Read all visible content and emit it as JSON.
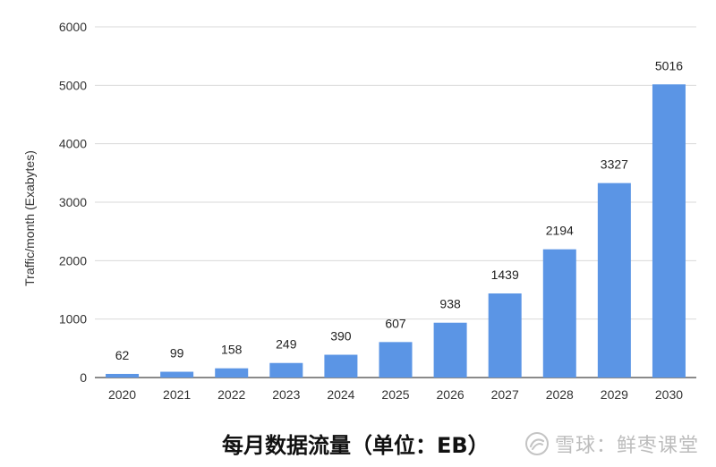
{
  "chart_data": {
    "type": "bar",
    "title": "",
    "xlabel": "",
    "ylabel": "Traffic/month (Exabytes)",
    "categories": [
      "2020",
      "2021",
      "2022",
      "2023",
      "2024",
      "2025",
      "2026",
      "2027",
      "2028",
      "2029",
      "2030"
    ],
    "values": [
      62,
      99,
      158,
      249,
      390,
      607,
      938,
      1439,
      2194,
      3327,
      5016
    ],
    "data_labels": [
      "62",
      "99",
      "158",
      "249",
      "390",
      "607",
      "938",
      "1439",
      "2194",
      "3327",
      "5016"
    ],
    "ylim": [
      0,
      6000
    ],
    "yticks": [
      "0",
      "1000",
      "2000",
      "3000",
      "4000",
      "5000",
      "6000"
    ],
    "grid": true,
    "bar_color": "#5b95e5",
    "grid_color": "#d9d9d9"
  },
  "caption": {
    "text": "每月数据流量（单位：EB）"
  },
  "watermark": {
    "text": "雪球：鲜枣课堂",
    "icon": "snowball-logo-icon"
  }
}
